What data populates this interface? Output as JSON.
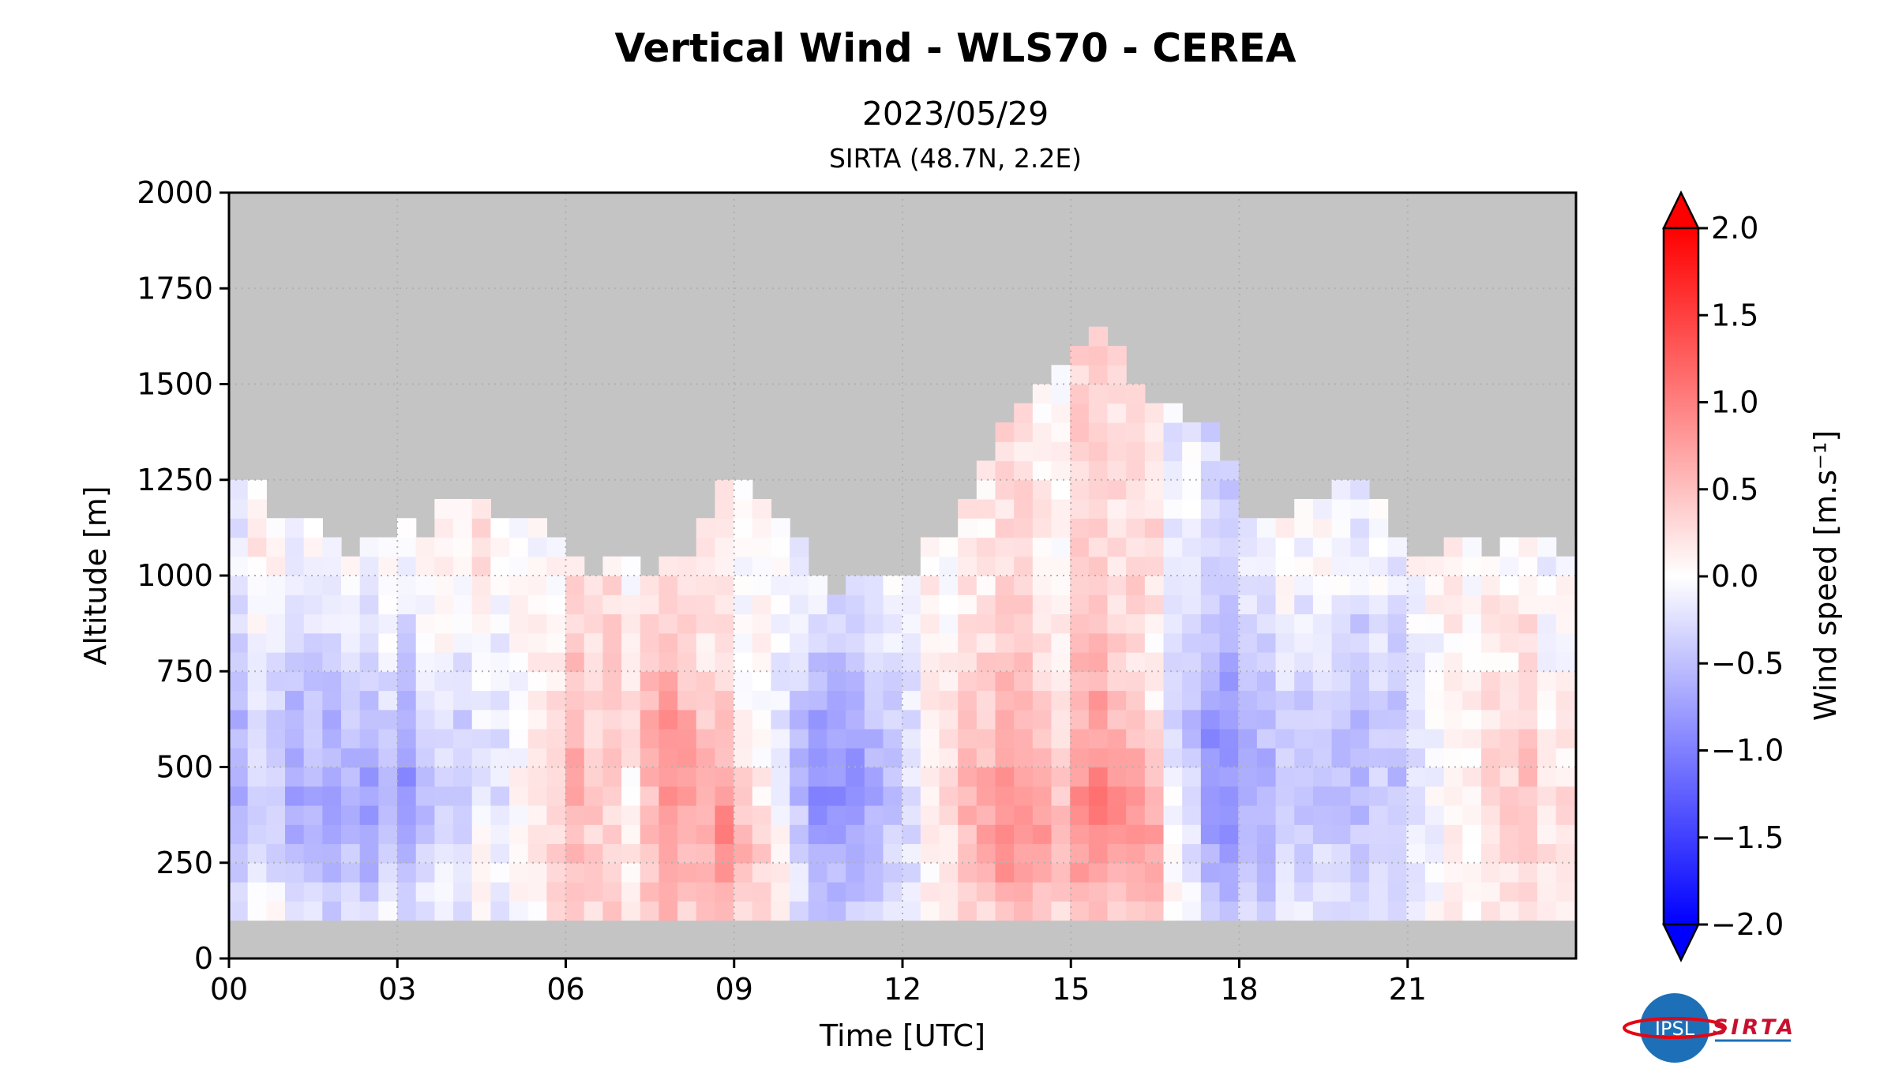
{
  "figure": {
    "title": "Vertical Wind - WLS70 - CEREA",
    "subtitle": "2023/05/29",
    "location": "SIRTA (48.7N, 2.2E)"
  },
  "logos": {
    "ipsl": "IPSL",
    "sirta": "SIRTA"
  },
  "chart_data": {
    "type": "heatmap",
    "title": "Vertical Wind - WLS70 - CEREA",
    "xlabel": "Time [UTC]",
    "ylabel": "Altitude [m]",
    "colorbar_label": "Wind speed [m.s⁻¹]",
    "x_unit": "hour UTC",
    "xlim": [
      0,
      24
    ],
    "ylim": [
      0,
      2000
    ],
    "x_ticks": [
      0,
      3,
      6,
      9,
      12,
      15,
      18,
      21
    ],
    "x_tick_labels": [
      "00",
      "03",
      "06",
      "09",
      "12",
      "15",
      "18",
      "21"
    ],
    "y_ticks": [
      0,
      250,
      500,
      750,
      1000,
      1250,
      1500,
      1750,
      2000
    ],
    "y_tick_labels": [
      "0",
      "250",
      "500",
      "750",
      "1000",
      "1250",
      "1500",
      "1750",
      "2000"
    ],
    "colorbar_ticks": [
      -2.0,
      -1.5,
      -1.0,
      -0.5,
      0.0,
      0.5,
      1.0,
      1.5,
      2.0
    ],
    "colorbar_tick_labels": [
      "−2.0",
      "−1.5",
      "−1.0",
      "−0.5",
      "0.0",
      "0.5",
      "1.0",
      "1.5",
      "2.0"
    ],
    "clim": [
      -2.0,
      2.0
    ],
    "colormap": [
      "#0000ff",
      "#ffffff",
      "#ff0000"
    ],
    "missing_color": "#c4c4c4",
    "grid": true,
    "altitude_bottom": 100,
    "altitude_step": 50,
    "time_step_hours": 0.333,
    "profiles": [
      {
        "t": 0.0,
        "top": 1200,
        "v": [
          0.0,
          -0.2,
          -0.4,
          -0.5,
          -0.4,
          -0.4,
          -0.3,
          -0.1,
          0.0
        ]
      },
      {
        "t": 2.0,
        "top": 1000,
        "v": [
          -0.3,
          -0.5,
          -0.6,
          -0.7,
          -0.6,
          -0.5,
          -0.4,
          -0.2,
          -0.1
        ]
      },
      {
        "t": 3.0,
        "top": 1050,
        "v": [
          -0.2,
          -0.4,
          -0.7,
          -0.8,
          -0.6,
          -0.4,
          -0.3,
          -0.1,
          0.0
        ]
      },
      {
        "t": 4.5,
        "top": 1150,
        "v": [
          -0.1,
          0.0,
          -0.2,
          -0.3,
          -0.3,
          -0.2,
          -0.1,
          0.0,
          0.1
        ]
      },
      {
        "t": 6.0,
        "top": 1000,
        "v": [
          0.4,
          0.5,
          0.6,
          0.7,
          0.6,
          0.5,
          0.4,
          0.3,
          0.2
        ]
      },
      {
        "t": 7.0,
        "top": 1000,
        "v": [
          0.2,
          0.3,
          0.2,
          0.1,
          0.2,
          0.3,
          0.3,
          0.2,
          0.1
        ]
      },
      {
        "t": 8.0,
        "top": 1000,
        "v": [
          0.5,
          0.6,
          0.7,
          0.9,
          1.0,
          0.8,
          0.6,
          0.4,
          0.3
        ]
      },
      {
        "t": 9.0,
        "top": 1200,
        "v": [
          0.3,
          0.6,
          0.8,
          0.5,
          0.3,
          0.1,
          0.0,
          0.1,
          0.0
        ]
      },
      {
        "t": 10.5,
        "top": 950,
        "v": [
          -0.4,
          -0.6,
          -0.8,
          -1.0,
          -0.9,
          -0.7,
          -0.5,
          -0.3,
          -0.2
        ]
      },
      {
        "t": 12.0,
        "top": 950,
        "v": [
          -0.1,
          -0.2,
          -0.3,
          -0.3,
          -0.3,
          -0.2,
          -0.1,
          0.0,
          0.0
        ]
      },
      {
        "t": 13.0,
        "top": 1100,
        "v": [
          0.1,
          0.2,
          0.3,
          0.4,
          0.3,
          0.2,
          0.1,
          0.0,
          0.0
        ]
      },
      {
        "t": 14.0,
        "top": 1400,
        "v": [
          0.5,
          0.8,
          1.0,
          0.9,
          0.7,
          0.6,
          0.5,
          0.4,
          0.3
        ]
      },
      {
        "t": 15.0,
        "top": 1500,
        "v": [
          0.3,
          0.5,
          0.6,
          0.5,
          0.4,
          0.3,
          0.2,
          0.2,
          0.1
        ]
      },
      {
        "t": 15.5,
        "top": 1600,
        "v": [
          0.6,
          0.9,
          1.1,
          1.2,
          1.0,
          0.9,
          0.8,
          0.7,
          0.5
        ]
      },
      {
        "t": 16.5,
        "top": 1400,
        "v": [
          0.3,
          0.5,
          0.6,
          0.4,
          0.2,
          0.0,
          -0.1,
          0.0,
          0.1
        ]
      },
      {
        "t": 17.5,
        "top": 1300,
        "v": [
          -0.5,
          -0.7,
          -0.8,
          -0.9,
          -1.0,
          -0.9,
          -0.7,
          -0.6,
          -0.4
        ]
      },
      {
        "t": 18.5,
        "top": 1050,
        "v": [
          -0.3,
          -0.4,
          -0.5,
          -0.6,
          -0.5,
          -0.4,
          -0.3,
          -0.2,
          -0.1
        ]
      },
      {
        "t": 20.0,
        "top": 1200,
        "v": [
          -0.3,
          -0.4,
          -0.5,
          -0.6,
          -0.7,
          -0.6,
          -0.5,
          -0.4,
          -0.2
        ]
      },
      {
        "t": 21.0,
        "top": 1050,
        "v": [
          -0.1,
          -0.2,
          -0.3,
          -0.3,
          -0.3,
          -0.2,
          -0.2,
          -0.1,
          0.0
        ]
      },
      {
        "t": 23.0,
        "top": 1050,
        "v": [
          0.1,
          0.2,
          0.3,
          0.4,
          0.3,
          0.2,
          0.1,
          0.1,
          0.0
        ]
      },
      {
        "t": 24.0,
        "top": 1050,
        "v": [
          0.2,
          0.3,
          0.3,
          0.2,
          0.1,
          0.1,
          0.0,
          0.0,
          0.0
        ]
      }
    ],
    "profile_levels": [
      100,
      212,
      325,
      437,
      550,
      662,
      775,
      887,
      1000
    ]
  }
}
